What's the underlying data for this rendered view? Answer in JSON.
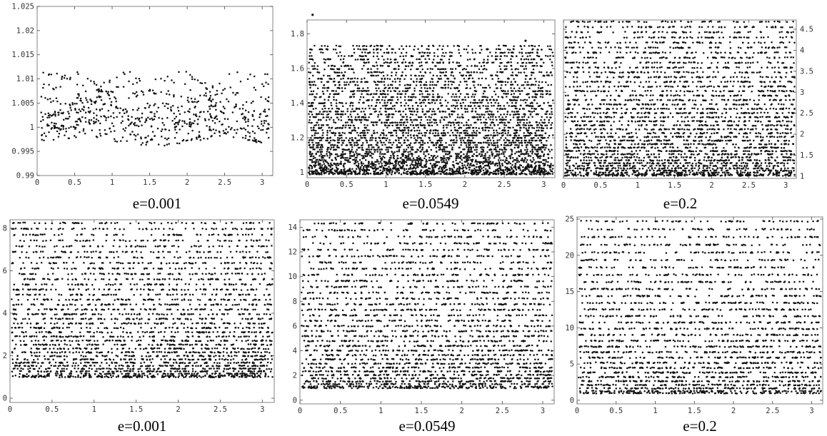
{
  "chart_data": [
    {
      "type": "scatter",
      "caption": "e=0.001",
      "xlim": [
        0,
        3.1416
      ],
      "ylim": [
        0.99,
        1.025
      ],
      "xticks": [
        0,
        0.5,
        1,
        1.5,
        2,
        2.5,
        3
      ],
      "xtick_labels": [
        "0",
        "0.5",
        "1",
        "1.5",
        "2",
        "2.5",
        "3"
      ],
      "yticks": [
        0.99,
        0.995,
        1,
        1.005,
        1.01,
        1.015,
        1.02,
        1.025
      ],
      "ytick_labels": [
        "0.99",
        "0.995",
        "1",
        "1.005",
        "1.01",
        "1.015",
        "1.02",
        "1.025"
      ],
      "yaxis_side": "left",
      "grid": false,
      "pattern": "crossing-bands",
      "band_count": 11,
      "y_range": [
        0.9925,
        1.0105
      ]
    },
    {
      "type": "scatter",
      "caption": "e=0.0549",
      "xlim": [
        0,
        3.1416
      ],
      "ylim": [
        0.97,
        1.88
      ],
      "xticks": [
        0,
        0.5,
        1,
        1.5,
        2,
        2.5,
        3
      ],
      "xtick_labels": [
        "0",
        "0.5",
        "1",
        "1.5",
        "2",
        "2.5",
        "3"
      ],
      "yticks": [
        1,
        1.2,
        1.4,
        1.6,
        1.8
      ],
      "ytick_labels": [
        "1",
        "1.2",
        "1.4",
        "1.6",
        "1.8"
      ],
      "yaxis_side": "left",
      "grid": false,
      "pattern": "bands",
      "band_count": 52,
      "y_range": [
        0.99,
        1.73
      ],
      "outliers": [
        [
          0.07,
          1.91
        ],
        [
          2.77,
          1.76
        ]
      ]
    },
    {
      "type": "scatter",
      "caption": "e=0.2",
      "xlim": [
        0,
        3.1416
      ],
      "ylim": [
        0.95,
        4.72
      ],
      "xticks": [
        0,
        0.5,
        1,
        1.5,
        2,
        2.5,
        3
      ],
      "xtick_labels": [
        "0",
        "0.5",
        "1",
        "1.5",
        "2",
        "2.5",
        "3"
      ],
      "yticks": [
        1,
        1.5,
        2,
        2.5,
        3,
        3.5,
        4,
        4.5
      ],
      "ytick_labels": [
        "1",
        "1.5",
        "2",
        "2.5",
        "3",
        "3.5",
        "4",
        "4.5"
      ],
      "yaxis_side": "right",
      "grid": false,
      "pattern": "bands",
      "band_count": 40,
      "y_range": [
        1.02,
        4.68
      ]
    },
    {
      "type": "scatter",
      "caption": "e=0.001",
      "xlim": [
        0,
        3.1416
      ],
      "ylim": [
        -0.2,
        8.4
      ],
      "xticks": [
        0,
        0.5,
        1,
        1.5,
        2,
        2.5,
        3
      ],
      "xtick_labels": [
        "0",
        "0.5",
        "1",
        "1.5",
        "2",
        "2.5",
        "3"
      ],
      "yticks": [
        0,
        2,
        4,
        6,
        8
      ],
      "ytick_labels": [
        "0",
        "2",
        "4",
        "6",
        "8"
      ],
      "yaxis_side": "left",
      "grid": false,
      "pattern": "bands",
      "band_count": 36,
      "y_range": [
        1.0,
        8.25
      ]
    },
    {
      "type": "scatter",
      "caption": "e=0.0549",
      "xlim": [
        0,
        3.1416
      ],
      "ylim": [
        -0.3,
        14.6
      ],
      "xticks": [
        0,
        0.5,
        1,
        1.5,
        2,
        2.5,
        3
      ],
      "xtick_labels": [
        "0",
        "0.5",
        "1",
        "1.5",
        "2",
        "2.5",
        "3"
      ],
      "yticks": [
        0,
        2,
        4,
        6,
        8,
        10,
        12,
        14
      ],
      "ytick_labels": [
        "0",
        "2",
        "4",
        "6",
        "8",
        "10",
        "12",
        "14"
      ],
      "yaxis_side": "left",
      "grid": false,
      "pattern": "bands",
      "band_count": 34,
      "y_range": [
        1.0,
        14.3
      ]
    },
    {
      "type": "scatter",
      "caption": "e=0.2",
      "xlim": [
        0,
        3.1416
      ],
      "ylim": [
        -0.5,
        25.3
      ],
      "xticks": [
        0,
        0.5,
        1,
        1.5,
        2,
        2.5,
        3
      ],
      "xtick_labels": [
        "0",
        "0.5",
        "1",
        "1.5",
        "2",
        "2.5",
        "3"
      ],
      "yticks": [
        0,
        5,
        10,
        15,
        20,
        25
      ],
      "ytick_labels": [
        "0",
        "5",
        "10",
        "15",
        "20",
        "25"
      ],
      "yaxis_side": "left",
      "grid": false,
      "pattern": "bands",
      "band_count": 30,
      "y_range": [
        1.0,
        24.7
      ]
    }
  ]
}
